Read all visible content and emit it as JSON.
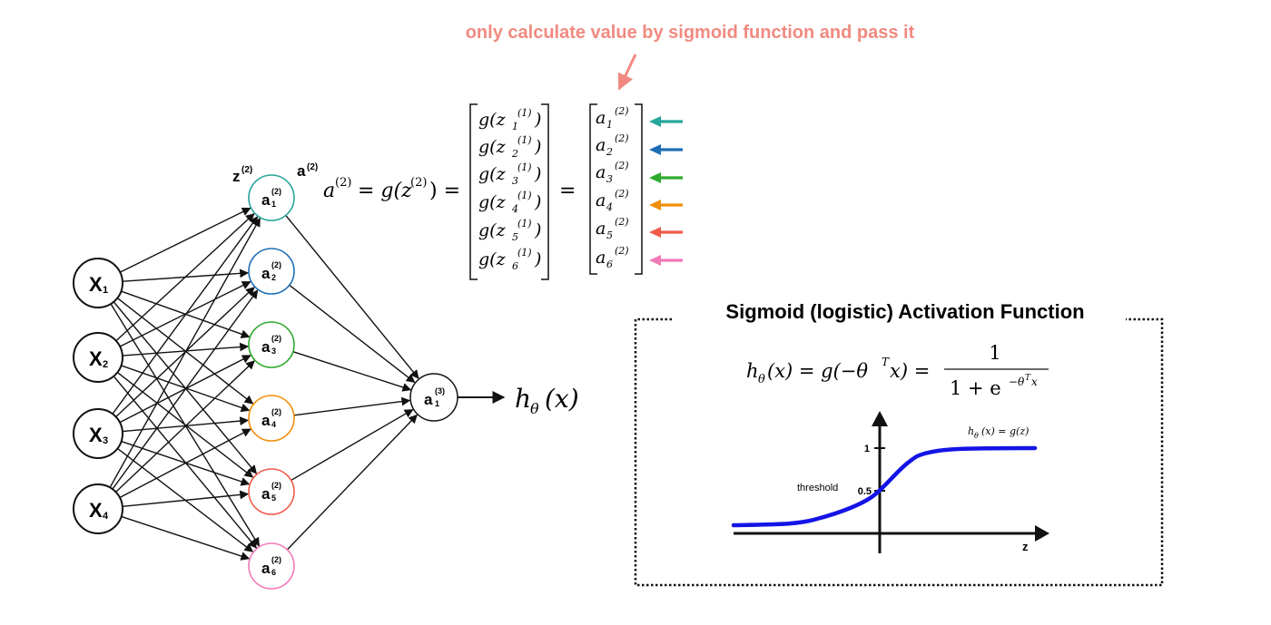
{
  "annotation": {
    "text": "only calculate value by sigmoid function and pass it",
    "color": "#f08a80"
  },
  "network": {
    "inputs": [
      {
        "main": "X",
        "sub": "1"
      },
      {
        "main": "X",
        "sub": "2"
      },
      {
        "main": "X",
        "sub": "3"
      },
      {
        "main": "X",
        "sub": "4"
      }
    ],
    "hidden": [
      {
        "main": "a",
        "sup": "(2)",
        "sub": "1",
        "color": "#26a69a"
      },
      {
        "main": "a",
        "sup": "(2)",
        "sub": "2",
        "color": "#1e6fb5"
      },
      {
        "main": "a",
        "sup": "(2)",
        "sub": "3",
        "color": "#2eaa2e"
      },
      {
        "main": "a",
        "sup": "(2)",
        "sub": "4",
        "color": "#f0900a"
      },
      {
        "main": "a",
        "sup": "(2)",
        "sub": "5",
        "color": "#f05a4a"
      },
      {
        "main": "a",
        "sup": "(2)",
        "sub": "6",
        "color": "#f07ab8"
      }
    ],
    "output": {
      "main": "a",
      "sup": "(3)",
      "sub": "1"
    },
    "z_label": {
      "main": "z",
      "sup": "(2)"
    },
    "a_label": {
      "main": "a",
      "sup": "(2)"
    },
    "hypothesis": {
      "main": "h",
      "sub": "θ",
      "arg": "(x)"
    }
  },
  "equation": {
    "lhs": "a",
    "lhs_sup": "(2)",
    "mid": "= g(z",
    "mid_sup": "(2)",
    "mid_end": ") =",
    "equals": "=",
    "g_entries": [
      {
        "pre": "g(z",
        "sub": "1",
        "sup": "(1)",
        "post": ")"
      },
      {
        "pre": "g(z",
        "sub": "2",
        "sup": "(1)",
        "post": ")"
      },
      {
        "pre": "g(z",
        "sub": "3",
        "sup": "(1)",
        "post": ")"
      },
      {
        "pre": "g(z",
        "sub": "4",
        "sup": "(1)",
        "post": ")"
      },
      {
        "pre": "g(z",
        "sub": "5",
        "sup": "(1)",
        "post": ")"
      },
      {
        "pre": "g(z",
        "sub": "6",
        "sup": "(1)",
        "post": ")"
      }
    ],
    "a_entries": [
      {
        "pre": "a",
        "sub": "1",
        "sup": "(2)"
      },
      {
        "pre": "a",
        "sub": "2",
        "sup": "(2)"
      },
      {
        "pre": "a",
        "sub": "3",
        "sup": "(2)"
      },
      {
        "pre": "a",
        "sub": "4",
        "sup": "(2)"
      },
      {
        "pre": "a",
        "sub": "5",
        "sup": "(2)"
      },
      {
        "pre": "a",
        "sub": "6",
        "sup": "(2)"
      }
    ]
  },
  "sigmoid_box": {
    "title": "Sigmoid (logistic) Activation Function",
    "formula_lhs": "h",
    "formula_lhs_sub": "θ",
    "formula_lhs_arg": "(x) = g(−θ",
    "formula_T": "T",
    "formula_mid": "x) =",
    "numerator": "1",
    "denominator": "1 + e",
    "denominator_sup": "−θ",
    "denominator_sup_T": "T",
    "denominator_sup_x": "x",
    "curve_label": "h",
    "curve_label_sub": "θ",
    "curve_label_rest": "(x) = g(z)",
    "tick_one": "1",
    "tick_half": "0.5",
    "threshold_label": "threshold",
    "z_axis_label": "z",
    "curve_color": "#1414e6"
  }
}
